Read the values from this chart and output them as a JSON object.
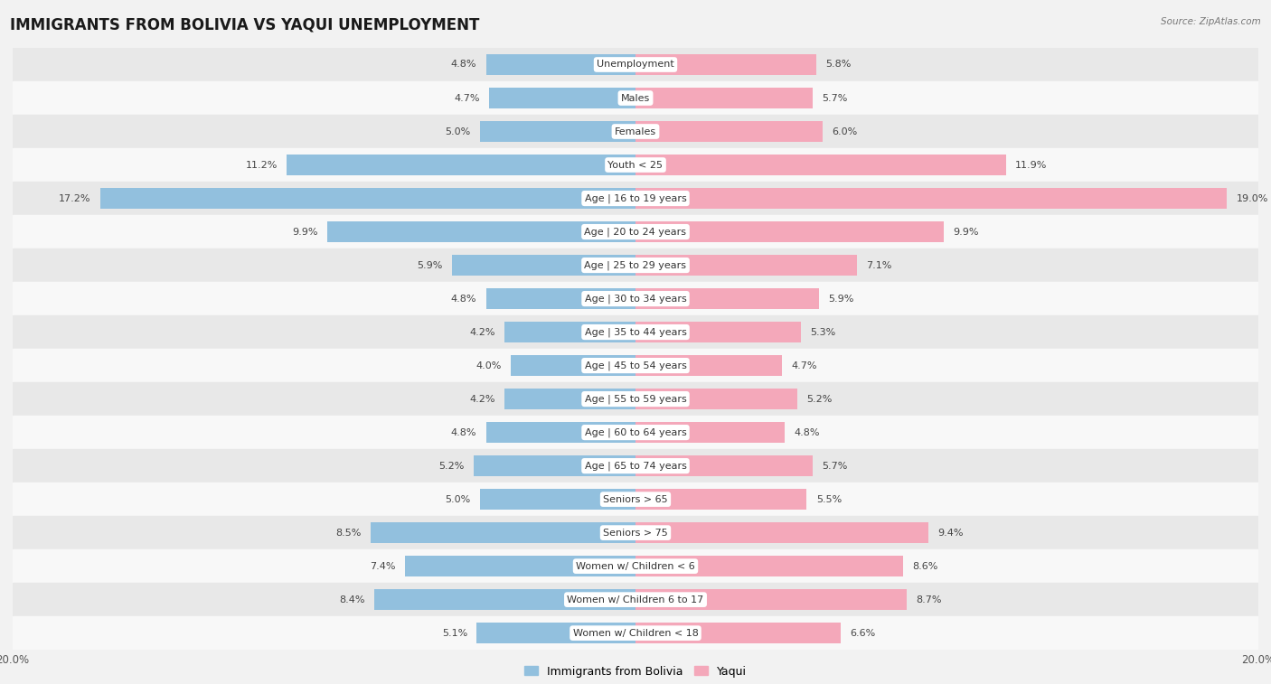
{
  "title": "IMMIGRANTS FROM BOLIVIA VS YAQUI UNEMPLOYMENT",
  "source": "Source: ZipAtlas.com",
  "categories": [
    "Unemployment",
    "Males",
    "Females",
    "Youth < 25",
    "Age | 16 to 19 years",
    "Age | 20 to 24 years",
    "Age | 25 to 29 years",
    "Age | 30 to 34 years",
    "Age | 35 to 44 years",
    "Age | 45 to 54 years",
    "Age | 55 to 59 years",
    "Age | 60 to 64 years",
    "Age | 65 to 74 years",
    "Seniors > 65",
    "Seniors > 75",
    "Women w/ Children < 6",
    "Women w/ Children 6 to 17",
    "Women w/ Children < 18"
  ],
  "bolivia_values": [
    4.8,
    4.7,
    5.0,
    11.2,
    17.2,
    9.9,
    5.9,
    4.8,
    4.2,
    4.0,
    4.2,
    4.8,
    5.2,
    5.0,
    8.5,
    7.4,
    8.4,
    5.1
  ],
  "yaqui_values": [
    5.8,
    5.7,
    6.0,
    11.9,
    19.0,
    9.9,
    7.1,
    5.9,
    5.3,
    4.7,
    5.2,
    4.8,
    5.7,
    5.5,
    9.4,
    8.6,
    8.7,
    6.6
  ],
  "bolivia_color": "#92c0de",
  "yaqui_color": "#f4a8ba",
  "background_color": "#f2f2f2",
  "row_color_odd": "#e8e8e8",
  "row_color_even": "#f8f8f8",
  "xlim": 20.0,
  "bar_height": 0.62,
  "title_fontsize": 12,
  "label_fontsize": 8.5,
  "value_fontsize": 8.0,
  "legend_fontsize": 9,
  "cat_fontsize": 8.0
}
